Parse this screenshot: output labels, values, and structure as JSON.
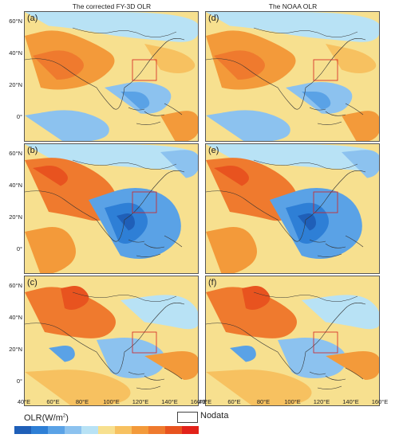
{
  "titles": {
    "left": "The corrected FY-3D OLR",
    "right": "The NOAA OLR"
  },
  "panels": [
    {
      "label": "(a)",
      "variant": 0
    },
    {
      "label": "(b)",
      "variant": 1
    },
    {
      "label": "(c)",
      "variant": 2
    },
    {
      "label": "(d)",
      "variant": 0
    },
    {
      "label": "(e)",
      "variant": 1
    },
    {
      "label": "(f)",
      "variant": 2
    }
  ],
  "y_ticks": [
    "60°N",
    "40°N",
    "20°N",
    "0°"
  ],
  "x_ticks": [
    "40°E",
    "60°E",
    "80°E",
    "100°E",
    "120°E",
    "140°E",
    "160°E"
  ],
  "legend": {
    "title": "OLR",
    "unit_base": "(W/m",
    "unit_exp": "2",
    "unit_close": ")",
    "nodata": "Nodata",
    "colors": [
      "#1f5fb8",
      "#2e7fd6",
      "#5aa2e6",
      "#8cc2ef",
      "#b8e2f5",
      "#f7e08f",
      "#f7c160",
      "#f39a3a",
      "#ef7a2e",
      "#e8531f",
      "#e2221a"
    ]
  }
}
